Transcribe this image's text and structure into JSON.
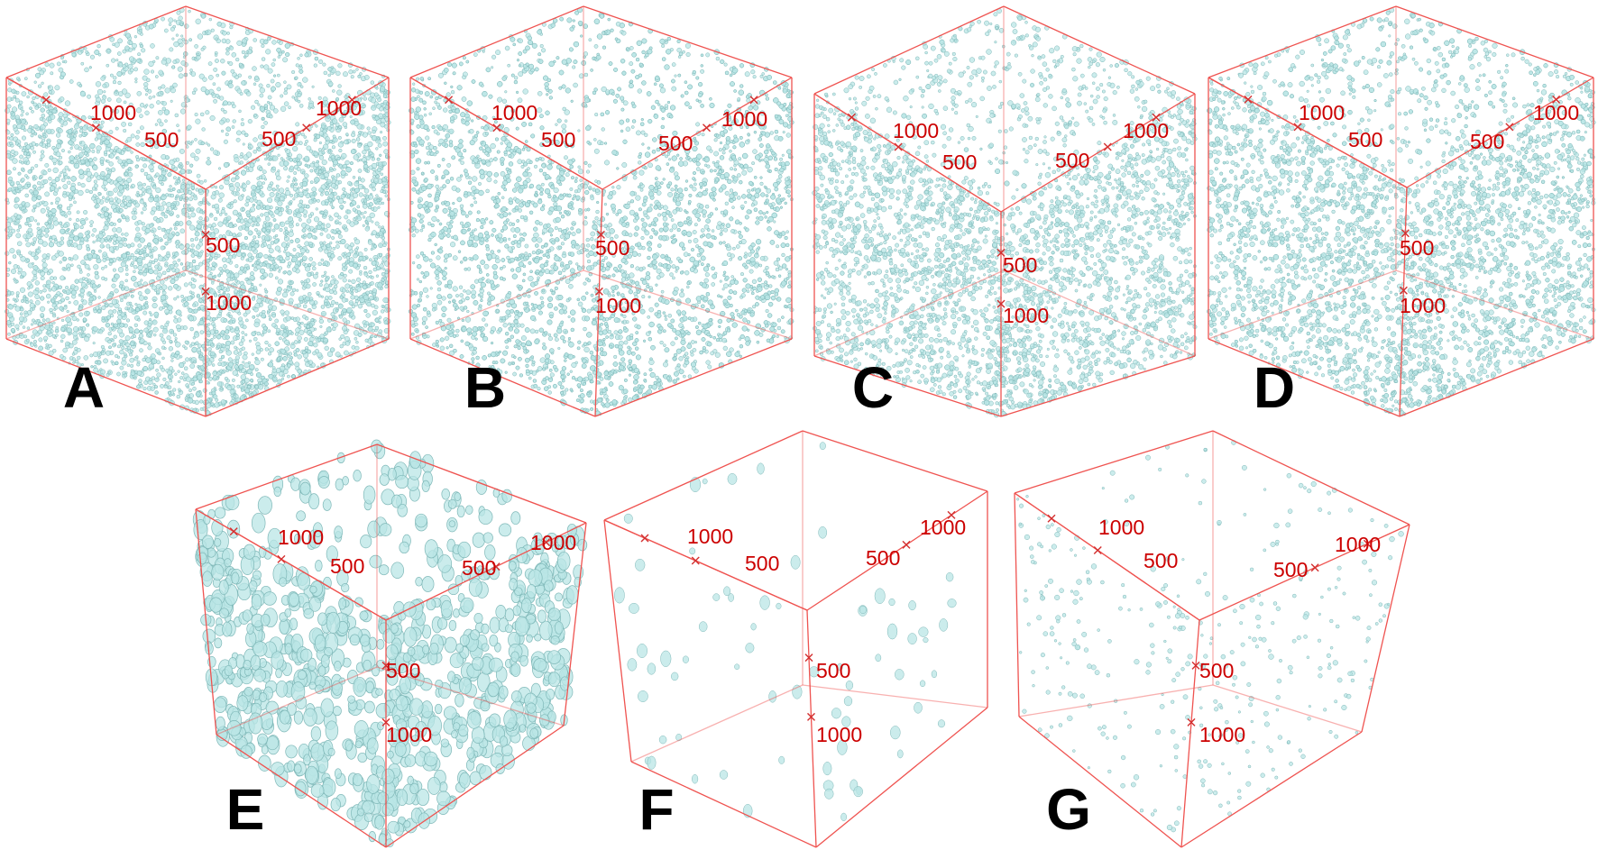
{
  "colors": {
    "background": "#ffffff",
    "box_edge": "#ef5350",
    "axis_text": "#cc0000",
    "particle_fill": "#b9e6e6",
    "particle_edge": "#7fb8b8",
    "letter": "#000000"
  },
  "panels": [
    {
      "letter": "A",
      "labels": [
        "1000",
        "500",
        "500",
        "1000",
        "500",
        "1000"
      ],
      "density_level": 1.0,
      "particle_size": "small"
    },
    {
      "letter": "B",
      "labels": [
        "1000",
        "500",
        "500",
        "1000",
        "500",
        "1000"
      ],
      "density_level": 0.95,
      "particle_size": "small"
    },
    {
      "letter": "C",
      "labels": [
        "1000",
        "500",
        "500",
        "1000",
        "500",
        "1000"
      ],
      "density_level": 0.7,
      "particle_size": "small"
    },
    {
      "letter": "D",
      "labels": [
        "1000",
        "500",
        "500",
        "1000",
        "500",
        "1000"
      ],
      "density_level": 0.85,
      "particle_size": "small"
    },
    {
      "letter": "E",
      "labels": [
        "1000",
        "500",
        "500",
        "1000",
        "500",
        "1000"
      ],
      "density_level": 0.3,
      "particle_size": "large"
    },
    {
      "letter": "F",
      "labels": [
        "1000",
        "500",
        "500",
        "1000",
        "500",
        "1000"
      ],
      "density_level": 0.12,
      "particle_size": "medium"
    },
    {
      "letter": "G",
      "labels": [
        "1000",
        "500",
        "500",
        "1000",
        "500",
        "1000"
      ],
      "density_level": 0.07,
      "particle_size": "small"
    }
  ]
}
